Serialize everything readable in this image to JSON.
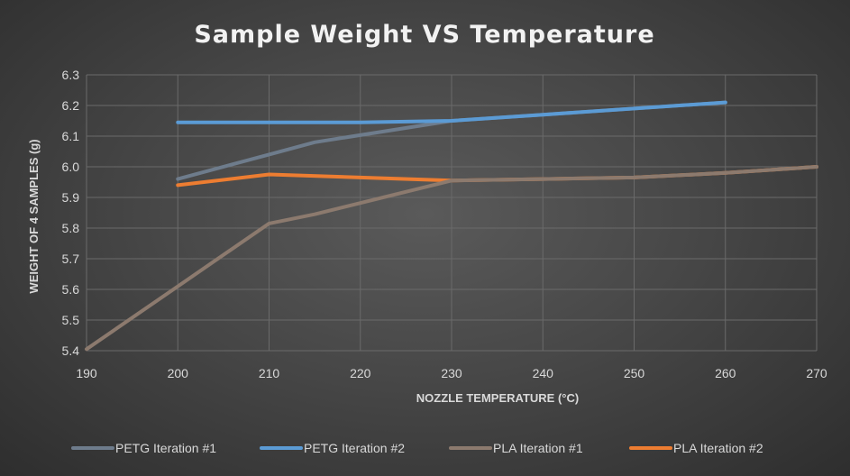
{
  "chart_data": {
    "type": "line",
    "title": "Sample Weight VS Temperature",
    "xlabel": "NOZZLE TEMPERATURE (°C)",
    "ylabel": "WEIGHT OF 4 SAMPLES (g)",
    "xlim": [
      190,
      270
    ],
    "ylim": [
      5.4,
      6.3
    ],
    "x_ticks": [
      190,
      200,
      210,
      220,
      230,
      240,
      250,
      260,
      270
    ],
    "y_ticks": [
      5.4,
      5.5,
      5.6,
      5.7,
      5.8,
      5.9,
      6.0,
      6.1,
      6.2,
      6.3
    ],
    "x_tick_labels": [
      "190",
      "200",
      "210",
      "220",
      "230",
      "240",
      "250",
      "260",
      "270"
    ],
    "y_tick_labels": [
      "5.4",
      "5.5",
      "5.6",
      "5.7",
      "5.8",
      "5.9",
      "6.0",
      "6.1",
      "6.2",
      "6.3"
    ],
    "grid": true,
    "legend_position": "bottom",
    "series": [
      {
        "name": "PETG Iteration #1",
        "color": "#6e7c8c",
        "points": [
          [
            200,
            5.96
          ],
          [
            210,
            6.04
          ],
          [
            215,
            6.08
          ],
          [
            230,
            6.15
          ],
          [
            240,
            6.17
          ],
          [
            250,
            6.19
          ],
          [
            260,
            6.21
          ]
        ]
      },
      {
        "name": "PETG Iteration #2",
        "color": "#5b9bd5",
        "points": [
          [
            200,
            6.145
          ],
          [
            210,
            6.145
          ],
          [
            220,
            6.145
          ],
          [
            230,
            6.15
          ],
          [
            240,
            6.17
          ],
          [
            250,
            6.19
          ],
          [
            260,
            6.21
          ]
        ]
      },
      {
        "name": "PLA Iteration #1",
        "color": "#8c7a6e",
        "points": [
          [
            190,
            5.405
          ],
          [
            200,
            5.61
          ],
          [
            210,
            5.815
          ],
          [
            215,
            5.845
          ],
          [
            230,
            5.955
          ],
          [
            240,
            5.96
          ],
          [
            250,
            5.965
          ],
          [
            260,
            5.98
          ],
          [
            270,
            6.0
          ]
        ]
      },
      {
        "name": "PLA Iteration #2",
        "color": "#ed7d31",
        "points": [
          [
            200,
            5.94
          ],
          [
            210,
            5.975
          ],
          [
            220,
            5.965
          ],
          [
            230,
            5.955
          ],
          [
            240,
            5.96
          ],
          [
            250,
            5.965
          ],
          [
            260,
            5.98
          ],
          [
            270,
            6.0
          ]
        ]
      }
    ]
  }
}
